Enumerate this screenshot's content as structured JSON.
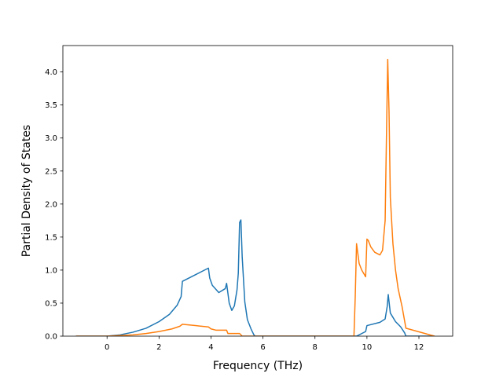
{
  "chart_data": {
    "type": "line",
    "title": "",
    "xlabel": "Frequency (THz)",
    "ylabel": "Partial Density of States",
    "xlim": [
      -1.7,
      13.3
    ],
    "ylim": [
      0.0,
      4.4
    ],
    "xticks": [
      0,
      2,
      4,
      6,
      8,
      10,
      12
    ],
    "xtick_labels": [
      "0",
      "2",
      "4",
      "6",
      "8",
      "10",
      "12"
    ],
    "yticks": [
      0.0,
      0.5,
      1.0,
      1.5,
      2.0,
      2.5,
      3.0,
      3.5,
      4.0
    ],
    "ytick_labels": [
      "0.0",
      "0.5",
      "1.0",
      "1.5",
      "2.0",
      "2.5",
      "3.0",
      "3.5",
      "4.0"
    ],
    "grid": false,
    "series": [
      {
        "color": "#1f77b4",
        "x": [
          -1.2,
          0.0,
          0.5,
          1.0,
          1.5,
          2.0,
          2.4,
          2.7,
          2.85,
          2.9,
          3.4,
          3.9,
          3.95,
          4.05,
          4.3,
          4.55,
          4.6,
          4.7,
          4.8,
          4.9,
          5.0,
          5.05,
          5.1,
          5.15,
          5.2,
          5.3,
          5.4,
          5.55,
          5.65,
          5.7,
          9.6,
          9.95,
          10.0,
          10.5,
          10.7,
          10.78,
          10.82,
          10.9,
          11.1,
          11.3,
          11.45,
          11.5,
          12.6
        ],
        "y": [
          0.0,
          0.0,
          0.02,
          0.06,
          0.12,
          0.22,
          0.33,
          0.47,
          0.6,
          0.83,
          0.93,
          1.03,
          0.88,
          0.77,
          0.66,
          0.72,
          0.8,
          0.5,
          0.39,
          0.46,
          0.7,
          0.95,
          1.72,
          1.76,
          1.2,
          0.52,
          0.25,
          0.1,
          0.02,
          0.0,
          0.0,
          0.07,
          0.16,
          0.21,
          0.26,
          0.45,
          0.63,
          0.35,
          0.22,
          0.14,
          0.05,
          0.0,
          0.0
        ]
      },
      {
        "color": "#ff7f0e",
        "x": [
          -1.2,
          0.0,
          1.0,
          1.5,
          2.0,
          2.5,
          2.8,
          2.9,
          3.4,
          3.9,
          4.0,
          4.2,
          4.5,
          4.6,
          4.65,
          5.0,
          5.1,
          5.2,
          5.3,
          9.5,
          9.55,
          9.6,
          9.7,
          9.8,
          9.95,
          10.0,
          10.05,
          10.15,
          10.3,
          10.5,
          10.6,
          10.7,
          10.75,
          10.8,
          10.85,
          10.9,
          11.0,
          11.1,
          11.2,
          11.35,
          11.5,
          12.6
        ],
        "y": [
          0.0,
          0.0,
          0.02,
          0.04,
          0.07,
          0.11,
          0.15,
          0.18,
          0.16,
          0.14,
          0.11,
          0.09,
          0.09,
          0.09,
          0.04,
          0.04,
          0.04,
          0.0,
          0.0,
          0.0,
          0.6,
          1.4,
          1.1,
          1.0,
          0.9,
          1.47,
          1.45,
          1.35,
          1.27,
          1.23,
          1.3,
          1.75,
          3.0,
          4.19,
          3.4,
          2.1,
          1.4,
          1.0,
          0.72,
          0.45,
          0.12,
          0.0
        ]
      }
    ]
  }
}
